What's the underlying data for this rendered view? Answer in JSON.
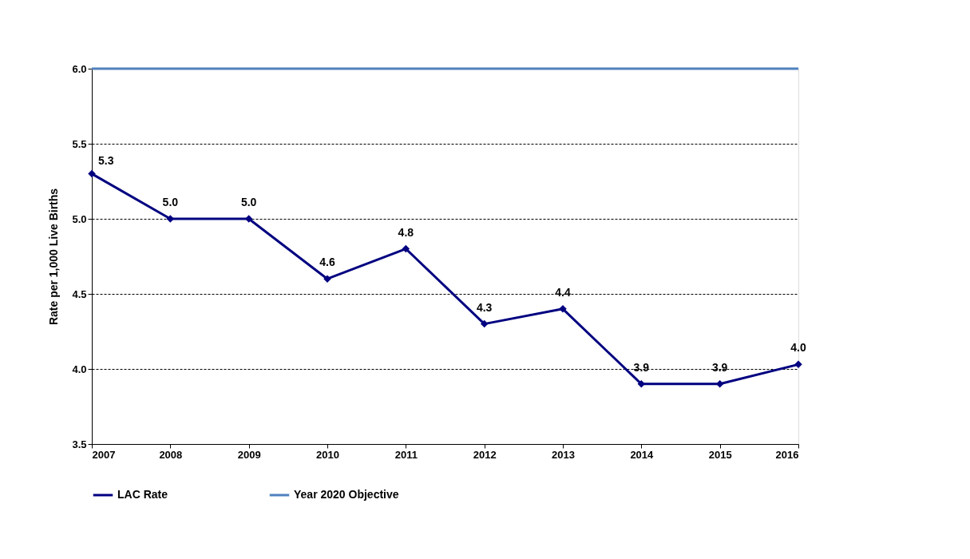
{
  "chart_data": {
    "type": "line",
    "ylabel": "Rate per 1,000 Live Births",
    "categories": [
      "2007",
      "2008",
      "2009",
      "2010",
      "2011",
      "2012",
      "2013",
      "2014",
      "2015",
      "2016"
    ],
    "series": [
      {
        "name": "LAC Rate",
        "color": "#000080",
        "marker": "diamond",
        "values": [
          5.3,
          5.0,
          5.0,
          4.6,
          4.8,
          4.3,
          4.4,
          3.9,
          3.9,
          4.03
        ],
        "value_labels": [
          "5.3",
          "5.0",
          "5.0",
          "4.6",
          "4.8",
          "4.3",
          "4.4",
          "3.9",
          "3.9",
          "4.0"
        ]
      },
      {
        "name": "Year 2020 Objective",
        "color": "#4f81bd",
        "marker": "none",
        "values": [
          6.0,
          6.0,
          6.0,
          6.0,
          6.0,
          6.0,
          6.0,
          6.0,
          6.0,
          6.0
        ]
      }
    ],
    "ylim": [
      3.5,
      6.0
    ],
    "yticks": [
      {
        "value": 3.5,
        "label": "3.5"
      },
      {
        "value": 4,
        "label": "4.0"
      },
      {
        "value": 4.5,
        "label": "4.5"
      },
      {
        "value": 5,
        "label": "5.0"
      },
      {
        "value": 5.5,
        "label": "5.5"
      },
      {
        "value": 6,
        "label": "6.0"
      }
    ],
    "grid": "y",
    "legend": "bottom",
    "line_style": "solid"
  }
}
